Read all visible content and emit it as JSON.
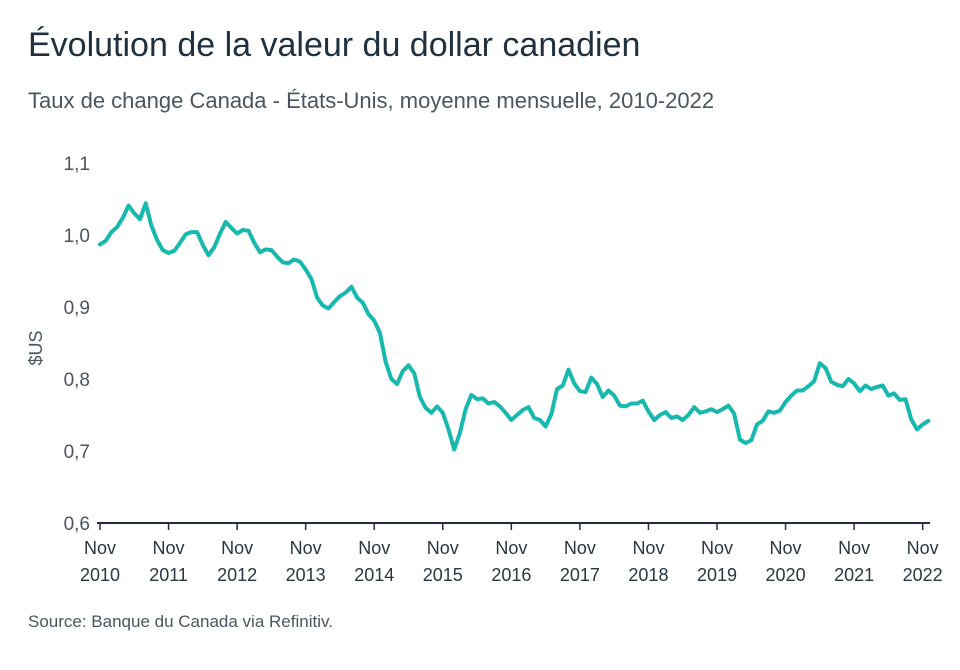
{
  "title": "Évolution de la valeur du dollar canadien",
  "subtitle": "Taux de change Canada - États-Unis, moyenne mensuelle, 2010-2022",
  "source": "Source: Banque du Canada via Refinitiv.",
  "colors": {
    "line": "#17b8ae",
    "axis": "#1f2d3d",
    "text": "#4a5561"
  },
  "chart_data": {
    "type": "line",
    "title": "Évolution de la valeur du dollar canadien",
    "subtitle": "Taux de change Canada - États-Unis, moyenne mensuelle, 2010-2022",
    "ylabel": "$US",
    "xlabel": "",
    "ylim": [
      0.6,
      1.1
    ],
    "yticks": [
      "1,1",
      "1,0",
      "0,9",
      "0,8",
      "0,7",
      "0,6"
    ],
    "ytick_values": [
      1.1,
      1.0,
      0.9,
      0.8,
      0.7,
      0.6
    ],
    "xticks": [
      {
        "month": "Nov",
        "year": "2010"
      },
      {
        "month": "Nov",
        "year": "2011"
      },
      {
        "month": "Nov",
        "year": "2012"
      },
      {
        "month": "Nov",
        "year": "2013"
      },
      {
        "month": "Nov",
        "year": "2014"
      },
      {
        "month": "Nov",
        "year": "2015"
      },
      {
        "month": "Nov",
        "year": "2016"
      },
      {
        "month": "Nov",
        "year": "2017"
      },
      {
        "month": "Nov",
        "year": "2018"
      },
      {
        "month": "Nov",
        "year": "2019"
      },
      {
        "month": "Nov",
        "year": "2020"
      },
      {
        "month": "Nov",
        "year": "2021"
      },
      {
        "month": "Nov",
        "year": "2022"
      }
    ],
    "grid": false,
    "x_start": "2010-11",
    "x_end": "2022-12",
    "series": [
      {
        "values": [
          0.987,
          0.992,
          1.004,
          1.011,
          1.024,
          1.041,
          1.03,
          1.022,
          1.044,
          1.013,
          0.993,
          0.979,
          0.975,
          0.978,
          0.989,
          1.001,
          1.004,
          1.004,
          0.986,
          0.972,
          0.983,
          1.002,
          1.018,
          1.01,
          1.002,
          1.007,
          1.006,
          0.989,
          0.976,
          0.98,
          0.979,
          0.97,
          0.962,
          0.961,
          0.966,
          0.963,
          0.952,
          0.939,
          0.913,
          0.902,
          0.898,
          0.907,
          0.915,
          0.92,
          0.928,
          0.913,
          0.906,
          0.89,
          0.881,
          0.864,
          0.824,
          0.8,
          0.793,
          0.811,
          0.819,
          0.808,
          0.775,
          0.76,
          0.753,
          0.762,
          0.753,
          0.73,
          0.702,
          0.725,
          0.758,
          0.778,
          0.772,
          0.773,
          0.766,
          0.768,
          0.762,
          0.753,
          0.743,
          0.75,
          0.757,
          0.761,
          0.746,
          0.743,
          0.734,
          0.751,
          0.786,
          0.791,
          0.813,
          0.794,
          0.783,
          0.782,
          0.802,
          0.793,
          0.775,
          0.784,
          0.777,
          0.763,
          0.762,
          0.766,
          0.766,
          0.77,
          0.755,
          0.743,
          0.75,
          0.754,
          0.746,
          0.748,
          0.743,
          0.75,
          0.761,
          0.753,
          0.755,
          0.758,
          0.754,
          0.758,
          0.763,
          0.752,
          0.716,
          0.711,
          0.715,
          0.737,
          0.742,
          0.755,
          0.753,
          0.756,
          0.768,
          0.777,
          0.784,
          0.784,
          0.79,
          0.797,
          0.822,
          0.815,
          0.796,
          0.792,
          0.79,
          0.8,
          0.794,
          0.783,
          0.791,
          0.786,
          0.789,
          0.791,
          0.777,
          0.78,
          0.771,
          0.772,
          0.744,
          0.73,
          0.737,
          0.742
        ]
      }
    ]
  }
}
